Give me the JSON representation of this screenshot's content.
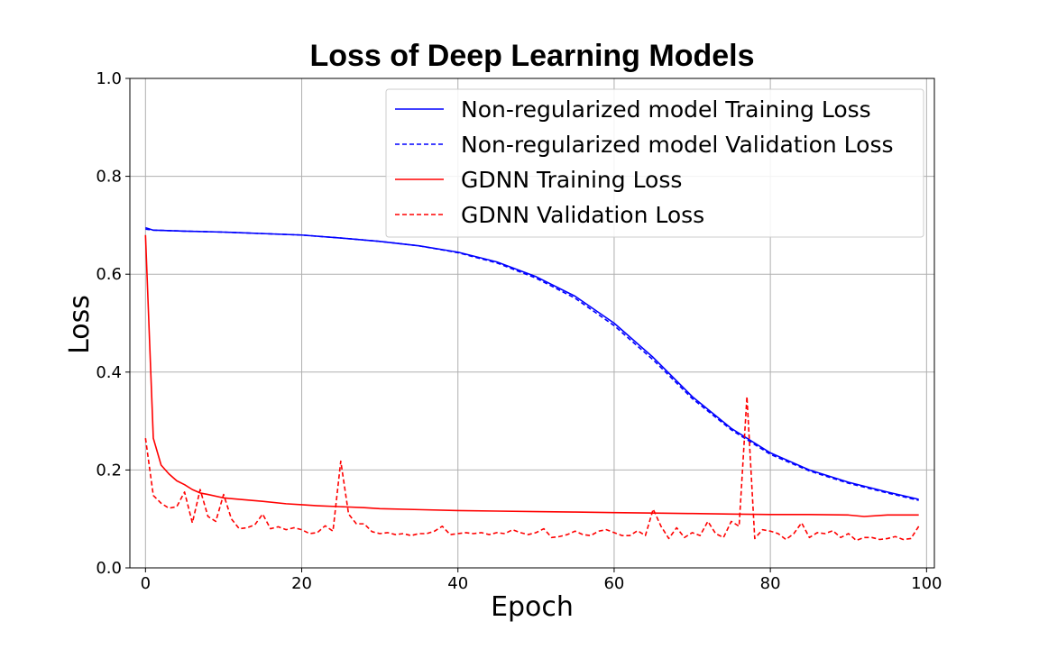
{
  "chart_data": {
    "type": "line",
    "title": "Loss of Deep Learning Models",
    "xlabel": "Epoch",
    "ylabel": "Loss",
    "xlim": [
      -2,
      101
    ],
    "ylim": [
      0.0,
      1.0
    ],
    "xticks": [
      0,
      20,
      40,
      60,
      80,
      100
    ],
    "yticks": [
      0.0,
      0.2,
      0.4,
      0.6,
      0.8,
      1.0
    ],
    "xtick_labels": [
      "0",
      "20",
      "40",
      "60",
      "80",
      "100"
    ],
    "ytick_labels": [
      "0.0",
      "0.2",
      "0.4",
      "0.6",
      "0.8",
      "1.0"
    ],
    "grid": true,
    "legend_position": "top-right",
    "series": [
      {
        "name": "Non-regularized model Training Loss",
        "color": "#0000ff",
        "style": "solid",
        "x": [
          0,
          1,
          5,
          10,
          15,
          20,
          25,
          30,
          35,
          40,
          45,
          50,
          55,
          60,
          65,
          70,
          75,
          80,
          85,
          90,
          95,
          99
        ],
        "y": [
          0.695,
          0.69,
          0.688,
          0.686,
          0.683,
          0.68,
          0.674,
          0.667,
          0.658,
          0.645,
          0.625,
          0.595,
          0.555,
          0.5,
          0.43,
          0.35,
          0.285,
          0.235,
          0.2,
          0.175,
          0.155,
          0.14
        ]
      },
      {
        "name": "Non-regularized model Validation Loss",
        "color": "#0000ff",
        "style": "dashed",
        "x": [
          0,
          1,
          5,
          10,
          15,
          20,
          25,
          30,
          35,
          40,
          45,
          50,
          55,
          60,
          65,
          70,
          75,
          80,
          85,
          90,
          95,
          99
        ],
        "y": [
          0.692,
          0.69,
          0.688,
          0.686,
          0.683,
          0.68,
          0.674,
          0.667,
          0.658,
          0.644,
          0.623,
          0.592,
          0.551,
          0.495,
          0.425,
          0.346,
          0.282,
          0.232,
          0.198,
          0.173,
          0.153,
          0.138
        ]
      },
      {
        "name": "GDNN Training Loss",
        "color": "#ff0000",
        "style": "solid",
        "x": [
          0,
          1,
          2,
          3,
          4,
          5,
          6,
          7,
          8,
          10,
          12,
          15,
          18,
          20,
          22,
          25,
          28,
          30,
          35,
          40,
          45,
          50,
          55,
          60,
          65,
          70,
          75,
          80,
          85,
          90,
          92,
          95,
          99
        ],
        "y": [
          0.68,
          0.265,
          0.21,
          0.192,
          0.178,
          0.17,
          0.16,
          0.153,
          0.15,
          0.143,
          0.14,
          0.136,
          0.131,
          0.129,
          0.127,
          0.125,
          0.123,
          0.121,
          0.119,
          0.117,
          0.116,
          0.115,
          0.114,
          0.113,
          0.112,
          0.111,
          0.11,
          0.109,
          0.109,
          0.108,
          0.105,
          0.108,
          0.108
        ]
      },
      {
        "name": "GDNN Validation Loss",
        "color": "#ff0000",
        "style": "dashed",
        "x": [
          0,
          1,
          2,
          3,
          4,
          5,
          6,
          7,
          8,
          9,
          10,
          11,
          12,
          13,
          14,
          15,
          16,
          17,
          18,
          19,
          20,
          21,
          22,
          23,
          24,
          25,
          26,
          27,
          28,
          29,
          30,
          31,
          32,
          33,
          34,
          35,
          36,
          37,
          38,
          39,
          40,
          41,
          42,
          43,
          44,
          45,
          46,
          47,
          48,
          49,
          50,
          51,
          52,
          53,
          54,
          55,
          56,
          57,
          58,
          59,
          60,
          61,
          62,
          63,
          64,
          65,
          66,
          67,
          68,
          69,
          70,
          71,
          72,
          73,
          74,
          75,
          76,
          77,
          78,
          79,
          80,
          81,
          82,
          83,
          84,
          85,
          86,
          87,
          88,
          89,
          90,
          91,
          92,
          93,
          94,
          95,
          96,
          97,
          98,
          99
        ],
        "y": [
          0.265,
          0.148,
          0.132,
          0.122,
          0.125,
          0.155,
          0.092,
          0.16,
          0.105,
          0.095,
          0.15,
          0.1,
          0.08,
          0.082,
          0.088,
          0.11,
          0.08,
          0.084,
          0.078,
          0.082,
          0.078,
          0.07,
          0.072,
          0.086,
          0.075,
          0.218,
          0.11,
          0.09,
          0.09,
          0.074,
          0.07,
          0.072,
          0.068,
          0.07,
          0.066,
          0.07,
          0.07,
          0.075,
          0.085,
          0.068,
          0.07,
          0.072,
          0.07,
          0.072,
          0.068,
          0.072,
          0.07,
          0.078,
          0.072,
          0.068,
          0.072,
          0.08,
          0.062,
          0.064,
          0.068,
          0.075,
          0.068,
          0.066,
          0.075,
          0.078,
          0.072,
          0.066,
          0.066,
          0.076,
          0.066,
          0.12,
          0.085,
          0.06,
          0.082,
          0.062,
          0.072,
          0.066,
          0.095,
          0.07,
          0.062,
          0.095,
          0.085,
          0.35,
          0.06,
          0.078,
          0.075,
          0.07,
          0.058,
          0.07,
          0.092,
          0.062,
          0.072,
          0.07,
          0.076,
          0.062,
          0.07,
          0.056,
          0.062,
          0.062,
          0.058,
          0.06,
          0.064,
          0.058,
          0.06,
          0.085
        ]
      }
    ]
  }
}
